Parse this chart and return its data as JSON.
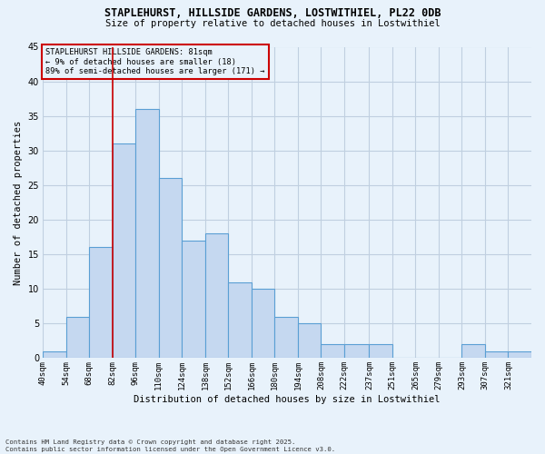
{
  "title1": "STAPLEHURST, HILLSIDE GARDENS, LOSTWITHIEL, PL22 0DB",
  "title2": "Size of property relative to detached houses in Lostwithiel",
  "xlabel": "Distribution of detached houses by size in Lostwithiel",
  "ylabel": "Number of detached properties",
  "footnote": "Contains HM Land Registry data © Crown copyright and database right 2025.\nContains public sector information licensed under the Open Government Licence v3.0.",
  "bin_labels": [
    "40sqm",
    "54sqm",
    "68sqm",
    "82sqm",
    "96sqm",
    "110sqm",
    "124sqm",
    "138sqm",
    "152sqm",
    "166sqm",
    "180sqm",
    "194sqm",
    "208sqm",
    "222sqm",
    "237sqm",
    "251sqm",
    "265sqm",
    "279sqm",
    "293sqm",
    "307sqm",
    "321sqm"
  ],
  "bin_edges": [
    40,
    54,
    68,
    82,
    96,
    110,
    124,
    138,
    152,
    166,
    180,
    194,
    208,
    222,
    237,
    251,
    265,
    279,
    293,
    307,
    321,
    335
  ],
  "values": [
    1,
    6,
    16,
    31,
    36,
    26,
    17,
    18,
    11,
    10,
    6,
    5,
    2,
    2,
    2,
    0,
    0,
    0,
    2,
    1,
    1
  ],
  "bar_color": "#c5d8f0",
  "bar_edge_color": "#5a9fd4",
  "grid_color": "#c0cfe0",
  "bg_color": "#e8f2fb",
  "vline_x": 82,
  "vline_color": "#cc0000",
  "annotation_text": "STAPLEHURST HILLSIDE GARDENS: 81sqm\n← 9% of detached houses are smaller (18)\n89% of semi-detached houses are larger (171) →",
  "annotation_box_color": "#cc0000",
  "ylim": [
    0,
    45
  ],
  "yticks": [
    0,
    5,
    10,
    15,
    20,
    25,
    30,
    35,
    40,
    45
  ]
}
